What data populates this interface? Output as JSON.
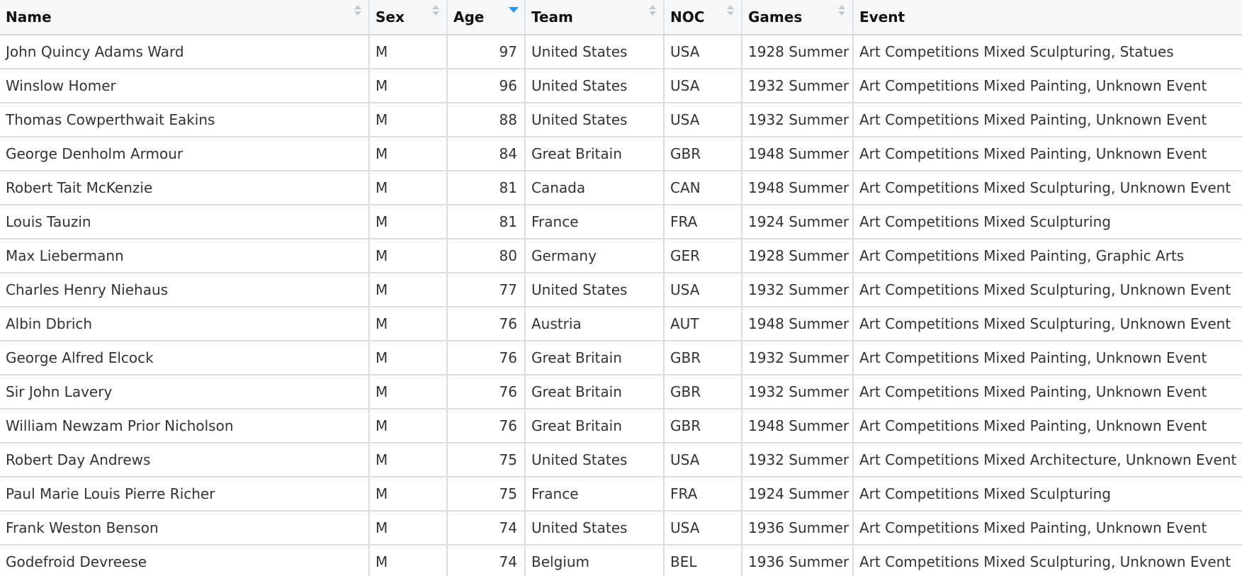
{
  "table": {
    "columns": [
      {
        "label": "Name",
        "sorted": false
      },
      {
        "label": "Sex",
        "sorted": false
      },
      {
        "label": "Age",
        "sorted": true
      },
      {
        "label": "Team",
        "sorted": false
      },
      {
        "label": "NOC",
        "sorted": false
      },
      {
        "label": "Games",
        "sorted": false
      },
      {
        "label": "Event",
        "sorted": false
      }
    ],
    "sort_indicator_color": "#2196f3",
    "rows": [
      [
        "John Quincy Adams Ward",
        "M",
        "97",
        "United States",
        "USA",
        "1928 Summer",
        "Art Competitions Mixed Sculpturing, Statues"
      ],
      [
        "Winslow Homer",
        "M",
        "96",
        "United States",
        "USA",
        "1932 Summer",
        "Art Competitions Mixed Painting, Unknown Event"
      ],
      [
        "Thomas Cowperthwait Eakins",
        "M",
        "88",
        "United States",
        "USA",
        "1932 Summer",
        "Art Competitions Mixed Painting, Unknown Event"
      ],
      [
        "George Denholm Armour",
        "M",
        "84",
        "Great Britain",
        "GBR",
        "1948 Summer",
        "Art Competitions Mixed Painting, Unknown Event"
      ],
      [
        "Robert Tait McKenzie",
        "M",
        "81",
        "Canada",
        "CAN",
        "1948 Summer",
        "Art Competitions Mixed Sculpturing, Unknown Event"
      ],
      [
        "Louis Tauzin",
        "M",
        "81",
        "France",
        "FRA",
        "1924 Summer",
        "Art Competitions Mixed Sculpturing"
      ],
      [
        "Max Liebermann",
        "M",
        "80",
        "Germany",
        "GER",
        "1928 Summer",
        "Art Competitions Mixed Painting, Graphic Arts"
      ],
      [
        "Charles Henry Niehaus",
        "M",
        "77",
        "United States",
        "USA",
        "1932 Summer",
        "Art Competitions Mixed Sculpturing, Unknown Event"
      ],
      [
        "Albin Dbrich",
        "M",
        "76",
        "Austria",
        "AUT",
        "1948 Summer",
        "Art Competitions Mixed Sculpturing, Unknown Event"
      ],
      [
        "George Alfred Elcock",
        "M",
        "76",
        "Great Britain",
        "GBR",
        "1932 Summer",
        "Art Competitions Mixed Painting, Unknown Event"
      ],
      [
        "Sir John Lavery",
        "M",
        "76",
        "Great Britain",
        "GBR",
        "1932 Summer",
        "Art Competitions Mixed Painting, Unknown Event"
      ],
      [
        "William Newzam Prior Nicholson",
        "M",
        "76",
        "Great Britain",
        "GBR",
        "1948 Summer",
        "Art Competitions Mixed Painting, Unknown Event"
      ],
      [
        "Robert Day Andrews",
        "M",
        "75",
        "United States",
        "USA",
        "1932 Summer",
        "Art Competitions Mixed Architecture, Unknown Event"
      ],
      [
        "Paul Marie Louis Pierre Richer",
        "M",
        "75",
        "France",
        "FRA",
        "1924 Summer",
        "Art Competitions Mixed Sculpturing"
      ],
      [
        "Frank Weston Benson",
        "M",
        "74",
        "United States",
        "USA",
        "1936 Summer",
        "Art Competitions Mixed Painting, Unknown Event"
      ],
      [
        "Godefroid Devreese",
        "M",
        "74",
        "Belgium",
        "BEL",
        "1936 Summer",
        "Art Competitions Mixed Sculpturing, Unknown Event"
      ]
    ]
  }
}
